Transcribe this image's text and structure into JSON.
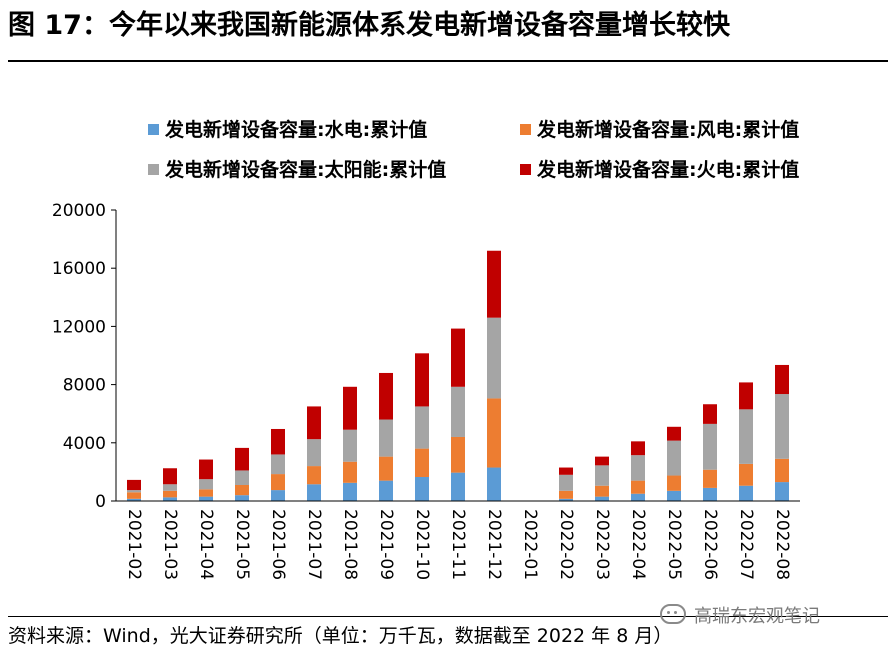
{
  "page": {
    "title": "图 17：今年以来我国新能源体系发电新增设备容量增长较快",
    "source": "资料来源：Wind，光大证券研究所（单位：万千瓦，数据截至 2022 年 8 月）",
    "watermark": "高瑞东宏观笔记",
    "watermark_icon": "wechat-icon"
  },
  "chart_data": {
    "type": "bar",
    "stacked": true,
    "title": "",
    "xlabel": "",
    "ylabel": "",
    "ylim": [
      0,
      20000
    ],
    "yticks": [
      0,
      4000,
      8000,
      12000,
      16000,
      20000
    ],
    "ytick_labels": [
      "0",
      "4000",
      "8000",
      "12000",
      "16000",
      "20000"
    ],
    "legend_position": "top",
    "categories": [
      "2021-02",
      "2021-03",
      "2021-04",
      "2021-05",
      "2021-06",
      "2021-07",
      "2021-08",
      "2021-09",
      "2021-10",
      "2021-11",
      "2021-12",
      "2022-01",
      "2022-02",
      "2022-03",
      "2022-04",
      "2022-05",
      "2022-06",
      "2022-07",
      "2022-08"
    ],
    "series": [
      {
        "name": "发电新增设备容量:水电:累计值",
        "color": "#5b9bd5",
        "values": [
          150,
          250,
          300,
          400,
          750,
          1150,
          1250,
          1400,
          1650,
          1950,
          2300,
          0,
          150,
          300,
          500,
          700,
          900,
          1050,
          1300
        ]
      },
      {
        "name": "发电新增设备容量:风电:累计值",
        "color": "#ed7d31",
        "values": [
          450,
          450,
          500,
          700,
          1100,
          1250,
          1450,
          1650,
          1950,
          2450,
          4750,
          0,
          550,
          750,
          900,
          1050,
          1250,
          1500,
          1600
        ]
      },
      {
        "name": "发电新增设备容量:太阳能:累计值",
        "color": "#a5a5a5",
        "values": [
          150,
          450,
          700,
          1000,
          1350,
          1850,
          2200,
          2550,
          2900,
          3450,
          5550,
          0,
          1100,
          1400,
          1750,
          2400,
          3150,
          3750,
          4450
        ]
      },
      {
        "name": "发电新增设备容量:火电:累计值",
        "color": "#c00000",
        "values": [
          700,
          1100,
          1350,
          1550,
          1750,
          2250,
          2950,
          3200,
          3650,
          4000,
          4600,
          0,
          500,
          600,
          950,
          950,
          1350,
          1850,
          2000
        ]
      }
    ]
  }
}
